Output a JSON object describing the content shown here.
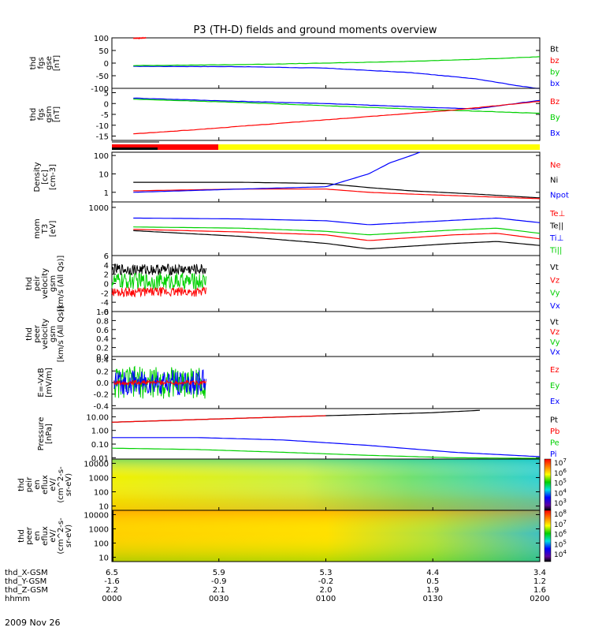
{
  "title": "P3 (TH-D) fields and ground moments overview",
  "date_label": "2009 Nov 26",
  "time_axis": {
    "ticks": [
      "0000",
      "0030",
      "0100",
      "0130",
      "0200"
    ],
    "rows": [
      {
        "label": "thd_X-GSM",
        "values": [
          "6.5",
          "5.9",
          "5.3",
          "4.4",
          "3.4"
        ]
      },
      {
        "label": "thd_Y-GSM",
        "values": [
          "-1.6",
          "-0.9",
          "-0.2",
          "0.5",
          "1.2"
        ]
      },
      {
        "label": "thd_Z-GSM",
        "values": [
          "2.2",
          "2.1",
          "2.0",
          "1.9",
          "1.6"
        ]
      },
      {
        "label": "hhmm",
        "values": [
          "0000",
          "0030",
          "0100",
          "0130",
          "0200"
        ]
      }
    ]
  },
  "colors": {
    "black": "#000000",
    "red": "#ff0000",
    "green": "#00d000",
    "blue": "#0000ff",
    "yellow": "#ffff00"
  },
  "chart_data": [
    {
      "type": "line",
      "panel": "fgs_gse",
      "ylabel": [
        "thd",
        "fgs",
        "gse",
        "[nT]"
      ],
      "ylim": [
        -100,
        100
      ],
      "yticks": [
        -100,
        -50,
        0,
        50,
        100
      ],
      "ytick_labels": [
        "-100",
        "-50",
        "0",
        "50",
        "100"
      ],
      "legend": [
        {
          "name": "Bt",
          "color": "#000000"
        },
        {
          "name": "bz",
          "color": "#ff0000"
        },
        {
          "name": "by",
          "color": "#00d000"
        },
        {
          "name": "bx",
          "color": "#0000ff"
        }
      ],
      "series": [
        {
          "name": "bx",
          "color": "#0000ff",
          "x": [
            0.05,
            0.3,
            0.5,
            0.7,
            0.85,
            0.95,
            1.0
          ],
          "y": [
            -13,
            -14,
            -20,
            -38,
            -62,
            -90,
            -102
          ]
        },
        {
          "name": "by",
          "color": "#00d000",
          "x": [
            0.05,
            0.3,
            0.5,
            0.7,
            0.85,
            1.0
          ],
          "y": [
            -10,
            -6,
            0,
            7,
            15,
            25
          ]
        },
        {
          "name": "bz",
          "color": "#ff0000",
          "x": [
            0.05,
            0.08
          ],
          "y": [
            98,
            100
          ]
        }
      ]
    },
    {
      "type": "line",
      "panel": "fgs_gsm",
      "ylabel": [
        "thd",
        "fgs",
        "gsm",
        "[nT]"
      ],
      "ylim": [
        -17,
        7
      ],
      "yticks": [
        -15,
        -10,
        -5,
        0,
        5
      ],
      "ytick_labels": [
        "-15",
        "-10",
        "-5",
        "0",
        "5"
      ],
      "legend": [
        {
          "name": "Bz",
          "color": "#ff0000"
        },
        {
          "name": "By",
          "color": "#00d000"
        },
        {
          "name": "Bx",
          "color": "#0000ff"
        }
      ],
      "series": [
        {
          "name": "Bx",
          "color": "#0000ff",
          "x": [
            0.05,
            0.3,
            0.5,
            0.7,
            0.85,
            1.0
          ],
          "y": [
            2.5,
            1.0,
            0,
            -1.5,
            -2.5,
            1.5
          ]
        },
        {
          "name": "By",
          "color": "#00d000",
          "x": [
            0.05,
            0.3,
            0.5,
            0.7,
            0.85,
            1.0
          ],
          "y": [
            2.0,
            0.5,
            -1,
            -2.5,
            -3.5,
            -4.5
          ]
        },
        {
          "name": "Bz",
          "color": "#ff0000",
          "x": [
            0.05,
            0.2,
            0.4,
            0.6,
            0.8,
            1.0
          ],
          "y": [
            -14,
            -12,
            -9,
            -6,
            -3,
            1
          ]
        }
      ]
    },
    {
      "type": "line",
      "panel": "density",
      "yscale": "log",
      "ylabel": [
        "Density",
        "[cc]",
        "[cm-3]"
      ],
      "ylim": [
        0.3,
        150
      ],
      "yticks": [
        1,
        10,
        100
      ],
      "ytick_labels": [
        "1",
        "10",
        "100"
      ],
      "legend": [
        {
          "name": "Ne",
          "color": "#ff0000"
        },
        {
          "name": "Ni",
          "color": "#000000"
        },
        {
          "name": "Npot",
          "color": "#0000ff"
        }
      ],
      "series": [
        {
          "name": "Ni",
          "color": "#000000",
          "x": [
            0.05,
            0.3,
            0.5,
            0.6,
            0.7,
            0.85,
            1.0
          ],
          "y": [
            3.5,
            3.5,
            3.0,
            1.8,
            1.2,
            0.8,
            0.5
          ]
        },
        {
          "name": "Ne",
          "color": "#ff0000",
          "x": [
            0.05,
            0.3,
            0.5,
            0.6,
            0.7,
            0.85,
            1.0
          ],
          "y": [
            1.2,
            1.5,
            1.5,
            1.0,
            0.8,
            0.6,
            0.45
          ]
        },
        {
          "name": "Npot",
          "color": "#0000ff",
          "x": [
            0.05,
            0.3,
            0.5,
            0.6,
            0.65,
            0.7,
            0.72
          ],
          "y": [
            1.0,
            1.5,
            2.0,
            10,
            40,
            100,
            150
          ]
        }
      ]
    },
    {
      "type": "line",
      "panel": "mom_temp",
      "yscale": "log",
      "ylabel": [
        "mom",
        "T3",
        "[eV]"
      ],
      "ylim": [
        200,
        1200
      ],
      "yticks": [
        1000
      ],
      "ytick_labels": [
        "1000"
      ],
      "legend": [
        {
          "name": "Te⊥",
          "color": "#ff0000"
        },
        {
          "name": "Te||",
          "color": "#000000"
        },
        {
          "name": "Ti⊥",
          "color": "#0000ff"
        },
        {
          "name": "Ti||",
          "color": "#00d000"
        }
      ],
      "series": [
        {
          "name": "Ti⊥",
          "color": "#0000ff",
          "x": [
            0.05,
            0.3,
            0.5,
            0.6,
            0.8,
            0.9,
            1.0
          ],
          "y": [
            700,
            680,
            640,
            560,
            650,
            700,
            600
          ]
        },
        {
          "name": "Ti||",
          "color": "#00d000",
          "x": [
            0.05,
            0.3,
            0.5,
            0.6,
            0.8,
            0.9,
            1.0
          ],
          "y": [
            520,
            500,
            450,
            400,
            470,
            500,
            420
          ]
        },
        {
          "name": "Te⊥",
          "color": "#ff0000",
          "x": [
            0.05,
            0.3,
            0.5,
            0.6,
            0.8,
            0.9,
            1.0
          ],
          "y": [
            480,
            440,
            400,
            330,
            400,
            420,
            350
          ]
        },
        {
          "name": "Te||",
          "color": "#000000",
          "x": [
            0.05,
            0.3,
            0.5,
            0.6,
            0.8,
            0.9,
            1.0
          ],
          "y": [
            460,
            380,
            300,
            250,
            300,
            320,
            280
          ]
        }
      ]
    },
    {
      "type": "line",
      "panel": "peir_velocity",
      "ylabel": [
        "thd",
        "peir",
        "velocity",
        "gsm",
        "[km/s (All Qs)]"
      ],
      "ylim": [
        -6,
        6
      ],
      "yticks": [
        -6,
        -4,
        -2,
        0,
        2,
        4,
        6
      ],
      "ytick_labels": [
        "-6",
        "-4",
        "-2",
        "0",
        "2",
        "4",
        "6"
      ],
      "legend": [
        {
          "name": "Vt",
          "color": "#000000"
        },
        {
          "name": "Vz",
          "color": "#ff0000"
        },
        {
          "name": "Vy",
          "color": "#00d000"
        },
        {
          "name": "Vx",
          "color": "#0000ff"
        }
      ],
      "series": [
        {
          "name": "Vt",
          "color": "#000000",
          "x": [
            0.0,
            0.22
          ],
          "y": [
            3.0,
            3.0
          ],
          "noise": 1.2
        },
        {
          "name": "Vy",
          "color": "#00d000",
          "x": [
            0.0,
            0.22
          ],
          "y": [
            0.5,
            0.5
          ],
          "noise": 1.8
        },
        {
          "name": "Vz",
          "color": "#ff0000",
          "x": [
            0.0,
            0.22
          ],
          "y": [
            -1.8,
            -1.8
          ],
          "noise": 1.0
        }
      ]
    },
    {
      "type": "line",
      "panel": "peer_velocity",
      "ylabel": [
        "thd",
        "peer",
        "velocity",
        "gsm",
        "[km/s (All Qs)]"
      ],
      "ylim": [
        0,
        1
      ],
      "yticks": [
        0,
        0.2,
        0.4,
        0.6,
        0.8,
        1.0
      ],
      "ytick_labels": [
        "0.0",
        "0.2",
        "0.4",
        "0.6",
        "0.8",
        "1.0"
      ],
      "legend": [
        {
          "name": "Vt",
          "color": "#000000"
        },
        {
          "name": "Vz",
          "color": "#ff0000"
        },
        {
          "name": "Vy",
          "color": "#00d000"
        },
        {
          "name": "Vx",
          "color": "#0000ff"
        }
      ],
      "series": []
    },
    {
      "type": "line",
      "panel": "efield",
      "ylabel": [
        "E=-VxB",
        "[mV/m]"
      ],
      "ylim": [
        -0.45,
        0.45
      ],
      "yticks": [
        -0.4,
        -0.2,
        0,
        0.2,
        0.4
      ],
      "ytick_labels": [
        "-0.4",
        "-0.2",
        "0.0",
        "0.2",
        "0.4"
      ],
      "legend": [
        {
          "name": "Ez",
          "color": "#ff0000"
        },
        {
          "name": "Ey",
          "color": "#00d000"
        },
        {
          "name": "Ex",
          "color": "#0000ff"
        }
      ],
      "series": [
        {
          "name": "Ey",
          "color": "#00d000",
          "x": [
            0.005,
            0.22
          ],
          "y": [
            0,
            0
          ],
          "noise": 0.28
        },
        {
          "name": "Ex",
          "color": "#0000ff",
          "x": [
            0.005,
            0.22
          ],
          "y": [
            0,
            0
          ],
          "noise": 0.22
        },
        {
          "name": "Ez",
          "color": "#ff0000",
          "x": [
            0.005,
            0.22
          ],
          "y": [
            0,
            0
          ],
          "noise": 0.04
        }
      ]
    },
    {
      "type": "line",
      "panel": "pressure",
      "yscale": "log",
      "ylabel": [
        "Pressure",
        "[nPa]"
      ],
      "ylim": [
        0.008,
        40
      ],
      "yticks": [
        0.01,
        0.1,
        1,
        10
      ],
      "ytick_labels": [
        "0.01",
        "0.10",
        "1.00",
        "10.00"
      ],
      "legend": [
        {
          "name": "Pt",
          "color": "#000000"
        },
        {
          "name": "Pb",
          "color": "#ff0000"
        },
        {
          "name": "Pe",
          "color": "#00d000"
        },
        {
          "name": "Pi",
          "color": "#0000ff"
        }
      ],
      "series": [
        {
          "name": "Pt",
          "color": "#000000",
          "x": [
            0.0,
            0.25,
            0.5,
            0.75,
            0.86
          ],
          "y": [
            4,
            7,
            12,
            20,
            30
          ]
        },
        {
          "name": "Pb",
          "color": "#ff0000",
          "x": [
            0.0,
            0.25,
            0.5
          ],
          "y": [
            4,
            7,
            12
          ]
        },
        {
          "name": "Pi",
          "color": "#0000ff",
          "x": [
            0.0,
            0.2,
            0.4,
            0.6,
            0.8,
            1.0
          ],
          "y": [
            0.3,
            0.3,
            0.2,
            0.08,
            0.025,
            0.012
          ]
        },
        {
          "name": "Pe",
          "color": "#00d000",
          "x": [
            0.0,
            0.2,
            0.4,
            0.6,
            0.8,
            1.0
          ],
          "y": [
            0.05,
            0.04,
            0.025,
            0.015,
            0.01,
            0.009
          ]
        }
      ]
    },
    {
      "type": "heatmap",
      "panel": "peir_spectrogram",
      "ylabel": [
        "thd",
        "peir",
        "en",
        "eflux",
        "eV/",
        "(cm^2-s-",
        "sr-eV)"
      ],
      "ylim": [
        5,
        20000
      ],
      "yscale": "log",
      "yticks": [
        10,
        100,
        1000,
        10000
      ],
      "ytick_labels": [
        "10",
        "100",
        "1000",
        "10000"
      ],
      "colorbar": {
        "labels": [
          "10^7",
          "10^6",
          "10^5",
          "10^4",
          "10^3"
        ]
      }
    },
    {
      "type": "heatmap",
      "panel": "peer_spectrogram",
      "ylabel": [
        "thd",
        "peer",
        "en",
        "eflux",
        "eV/",
        "(cm^2-s-",
        "sr-eV)"
      ],
      "ylim": [
        5,
        20000
      ],
      "yscale": "log",
      "yticks": [
        10,
        100,
        1000,
        10000
      ],
      "ytick_labels": [
        "10",
        "100",
        "1000",
        "10000"
      ],
      "colorbar": {
        "labels": [
          "10^8",
          "10^7",
          "10^6",
          "10^5",
          "10^4"
        ]
      }
    }
  ]
}
